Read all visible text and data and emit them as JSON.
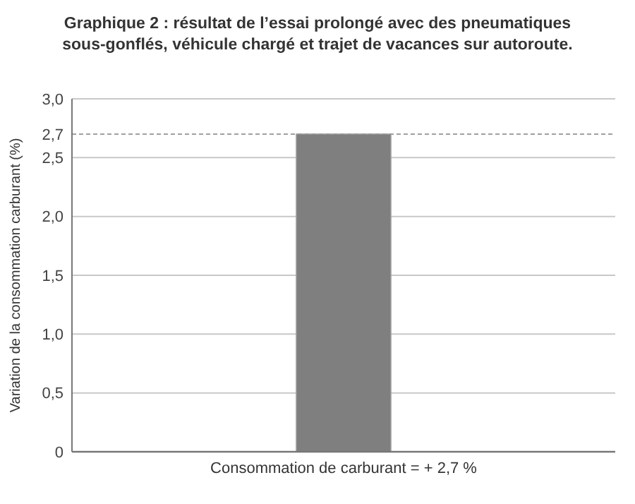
{
  "chart_data": {
    "type": "bar",
    "title": "Graphique 2 : résultat de l’essai prolongé avec des pneumatiques sous-gonflés, véhicule chargé et trajet de vacances sur autoroute.",
    "ylabel": "Variation de la consommation carburant (%)",
    "categories": [
      "Consommation de carburant = + 2,7 %"
    ],
    "values": [
      2.7
    ],
    "color": "#7f7f7f",
    "ylim": [
      0,
      3
    ],
    "yticks": [
      0,
      {
        "value": 0.5,
        "label": "0,5"
      },
      {
        "value": 1,
        "label": "1,0"
      },
      {
        "value": 1.5,
        "label": "1,5"
      },
      {
        "value": 2,
        "label": "2,0"
      },
      {
        "value": 2.5,
        "label": "2,5"
      },
      {
        "value": 2.7,
        "label": "2,7"
      },
      {
        "value": 3,
        "label": "3,0"
      }
    ],
    "ref_lines": [
      {
        "axis": "y",
        "value": 2.7,
        "color": "#a0a0a0",
        "line_style": "dashed"
      }
    ],
    "grid": "y"
  }
}
